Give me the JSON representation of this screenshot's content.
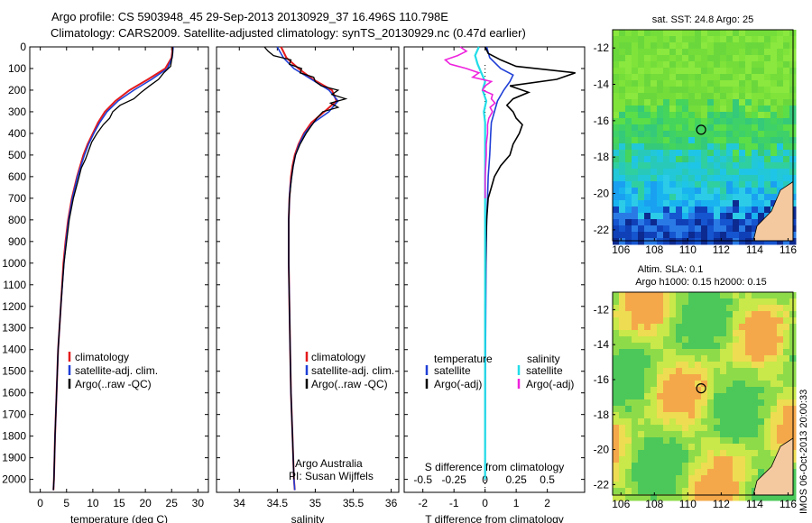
{
  "header": {
    "line1": "Argo profile: CS 5903948_45 29-Sep-2013 20130929_37 16.496S 110.798E",
    "line2": "Climatology: CARS2009. Satellite-adjusted climatology: synTS_20130929.nc (0.47d earlier)"
  },
  "side_label": "IMOS 06-Oct-2013 20:00:33",
  "colors": {
    "climatology": "#e41a1c",
    "satellite": "#1f3fd6",
    "argo": "#000000",
    "salinity_sat": "#22dde8",
    "salinity_argo": "#ee22dd",
    "land": "#f5c9a0",
    "marker": "#000000"
  },
  "chart_data": [
    {
      "type": "line",
      "xlabel": "temperature (deg C)",
      "ylabel": "",
      "xlim": [
        -2,
        32
      ],
      "ylim": [
        2060,
        0
      ],
      "xticks": [
        0,
        5,
        10,
        15,
        20,
        25,
        30
      ],
      "yticks": [
        0,
        100,
        200,
        300,
        400,
        500,
        600,
        700,
        800,
        900,
        1000,
        1100,
        1200,
        1300,
        1400,
        1500,
        1600,
        1700,
        1800,
        1900,
        2000
      ],
      "legend": [
        "climatology",
        "satellite-adj. clim.",
        "Argo(..raw -QC)"
      ],
      "series": [
        {
          "name": "climatology",
          "depth": [
            0,
            50,
            100,
            150,
            200,
            250,
            300,
            350,
            400,
            450,
            500,
            600,
            700,
            800,
            900,
            1000,
            1200,
            1400,
            1600,
            1800,
            2000,
            2050
          ],
          "values": [
            25.2,
            25.0,
            23.8,
            20.5,
            17.0,
            14.3,
            12.3,
            11.0,
            10.0,
            9.0,
            8.2,
            7.0,
            6.0,
            5.3,
            4.8,
            4.4,
            3.9,
            3.4,
            3.1,
            2.8,
            2.6,
            2.5
          ]
        },
        {
          "name": "satellite-adj. clim.",
          "depth": [
            0,
            50,
            100,
            150,
            200,
            250,
            300,
            350,
            400,
            450,
            500,
            600,
            700,
            800,
            900,
            1000,
            1200,
            1400,
            1600,
            1800,
            2000,
            2050
          ],
          "values": [
            25.3,
            25.1,
            24.2,
            21.2,
            17.8,
            14.8,
            12.7,
            11.3,
            10.2,
            9.2,
            8.4,
            7.1,
            6.1,
            5.4,
            4.9,
            4.5,
            3.9,
            3.4,
            3.1,
            2.8,
            2.6,
            2.5
          ]
        },
        {
          "name": "Argo(..raw -QC)",
          "depth": [
            0,
            30,
            60,
            90,
            120,
            150,
            180,
            210,
            240,
            270,
            300,
            330,
            360,
            400,
            440,
            480,
            520,
            560,
            600,
            700,
            800,
            900,
            1000,
            1200,
            1400,
            1600,
            1800,
            2000,
            2050
          ],
          "values": [
            25.2,
            25.2,
            25.0,
            24.8,
            23.5,
            22.5,
            20.8,
            19.2,
            17.8,
            15.2,
            13.8,
            13.2,
            12.0,
            10.8,
            9.8,
            9.2,
            8.6,
            7.8,
            7.4,
            6.3,
            5.5,
            5.0,
            4.5,
            3.9,
            3.4,
            3.1,
            2.8,
            2.6,
            2.5
          ]
        }
      ]
    },
    {
      "type": "line",
      "xlabel": "salinity",
      "ylabel": "",
      "xlim": [
        33.7,
        36.1
      ],
      "ylim": [
        2060,
        0
      ],
      "xticks": [
        34,
        34.5,
        35,
        35.5,
        36
      ],
      "legend": [
        "climatology",
        "satellite-adj. clim.",
        "Argo(..raw -QC)"
      ],
      "annotation": [
        "Argo Australia",
        "PI: Susan Wijffels"
      ],
      "series": [
        {
          "name": "climatology",
          "depth": [
            0,
            50,
            100,
            150,
            200,
            250,
            300,
            350,
            400,
            450,
            500,
            550,
            600,
            650,
            700,
            800,
            1000,
            1200,
            1400,
            1600,
            1800,
            2000,
            2050
          ],
          "values": [
            34.55,
            34.62,
            34.78,
            34.97,
            35.22,
            35.28,
            35.12,
            34.95,
            34.85,
            34.78,
            34.73,
            34.7,
            34.68,
            34.67,
            34.66,
            34.65,
            34.65,
            34.66,
            34.67,
            34.68,
            34.7,
            34.72,
            34.73
          ]
        },
        {
          "name": "satellite-adj. clim.",
          "depth": [
            0,
            50,
            100,
            150,
            200,
            250,
            300,
            350,
            400,
            450,
            500,
            550,
            600,
            650,
            700,
            800,
            1000,
            1200,
            1400,
            1600,
            1800,
            2000,
            2050
          ],
          "values": [
            34.5,
            34.58,
            34.72,
            34.95,
            35.18,
            35.3,
            35.18,
            34.98,
            34.86,
            34.79,
            34.74,
            34.71,
            34.69,
            34.67,
            34.66,
            34.65,
            34.65,
            34.66,
            34.67,
            34.68,
            34.7,
            34.72,
            34.73
          ]
        },
        {
          "name": "Argo(..raw -QC)",
          "depth": [
            0,
            20,
            40,
            60,
            80,
            100,
            120,
            140,
            160,
            180,
            200,
            220,
            240,
            260,
            280,
            300,
            330,
            360,
            400,
            450,
            500,
            550,
            600,
            700,
            800,
            1000,
            1200,
            1400,
            1600,
            1800,
            2000
          ],
          "values": [
            34.33,
            34.38,
            34.45,
            34.68,
            34.66,
            34.82,
            34.8,
            34.98,
            35.0,
            35.08,
            35.3,
            35.22,
            35.4,
            35.2,
            35.3,
            35.1,
            35.02,
            34.96,
            34.88,
            34.8,
            34.74,
            34.71,
            34.69,
            34.66,
            34.65,
            34.65,
            34.66,
            34.67,
            34.68,
            34.7,
            34.72
          ]
        }
      ]
    },
    {
      "type": "line",
      "xlabel": "T difference from climatology",
      "xlabel_top": "S difference from climatology",
      "xlim": [
        -2.6,
        3.2
      ],
      "ylim": [
        2060,
        0
      ],
      "xticks": [
        -2,
        -1,
        0,
        1,
        2
      ],
      "xticks_s": [
        -0.5,
        -0.25,
        0,
        0.25,
        0.5
      ],
      "legend_temperature": [
        "temperature",
        "satellite",
        "Argo(-adj)"
      ],
      "legend_salinity": [
        "salinity",
        "satellite",
        "Argo(-adj)"
      ],
      "series": [
        {
          "name": "temperature satellite",
          "depth": [
            0,
            50,
            100,
            130,
            160,
            200,
            250,
            300,
            350,
            400,
            500,
            600,
            700,
            800,
            1000,
            1500,
            2000
          ],
          "values": [
            0.05,
            0.15,
            0.5,
            0.9,
            0.8,
            0.6,
            0.4,
            0.3,
            0.2,
            0.18,
            0.15,
            0.1,
            0.08,
            0.05,
            0.03,
            0.01,
            0.0
          ]
        },
        {
          "name": "temperature Argo(-adj)",
          "depth": [
            0,
            30,
            60,
            90,
            120,
            150,
            180,
            210,
            240,
            270,
            300,
            330,
            360,
            400,
            450,
            500,
            550,
            600,
            650,
            700,
            800,
            900,
            1000,
            1200,
            1500,
            1800,
            2000
          ],
          "values": [
            0.0,
            0.1,
            0.5,
            1.0,
            2.9,
            2.3,
            0.8,
            1.4,
            0.9,
            0.7,
            0.9,
            1.0,
            1.2,
            1.1,
            0.9,
            0.8,
            0.5,
            0.3,
            0.2,
            0.1,
            0.05,
            0.03,
            0.02,
            0.0,
            0.0,
            0.0,
            0.0
          ]
        },
        {
          "name": "salinity satellite",
          "depth": [
            0,
            40,
            80,
            120,
            160,
            200,
            250,
            300,
            350,
            400,
            500,
            600,
            800,
            1000,
            1500,
            2000
          ],
          "values": [
            -0.05,
            -0.08,
            -0.06,
            -0.03,
            0.0,
            -0.02,
            0.01,
            -0.01,
            0.0,
            0.0,
            0.0,
            0.0,
            0.0,
            0.0,
            0.0,
            0.0
          ]
        },
        {
          "name": "salinity Argo(-adj)",
          "depth": [
            0,
            20,
            40,
            60,
            80,
            100,
            120,
            140,
            160,
            180,
            200,
            220,
            240,
            260,
            280,
            300,
            330,
            360,
            400,
            450,
            500,
            600,
            700
          ],
          "values": [
            -0.2,
            -0.15,
            -0.22,
            -0.32,
            -0.28,
            -0.15,
            -0.05,
            -0.1,
            0.05,
            0.0,
            -0.02,
            0.06,
            0.05,
            0.08,
            0.04,
            0.06,
            0.03,
            0.02,
            0.02,
            0.01,
            0.01,
            0.0,
            0.0
          ]
        }
      ]
    },
    {
      "type": "heatmap",
      "title": "sat. SST: 24.8 Argo: 25",
      "xlim": [
        105.5,
        116.3
      ],
      "ylim": [
        -22.6,
        -11.0
      ],
      "xticks": [
        106,
        108,
        110,
        112,
        114,
        116
      ],
      "yticks": [
        -12,
        -14,
        -16,
        -18,
        -20,
        -22
      ],
      "marker": {
        "lon": 110.798,
        "lat": -16.496
      }
    },
    {
      "type": "heatmap",
      "title_line1": "Altim. SLA: 0.1",
      "title_line2": "Argo h1000: 0.15 h2000: 0.15",
      "xlim": [
        105.5,
        116.3
      ],
      "ylim": [
        -22.6,
        -11.0
      ],
      "xticks": [
        106,
        108,
        110,
        112,
        114,
        116
      ],
      "yticks": [
        -12,
        -14,
        -16,
        -18,
        -20,
        -22
      ],
      "marker": {
        "lon": 110.798,
        "lat": -16.496
      }
    }
  ]
}
